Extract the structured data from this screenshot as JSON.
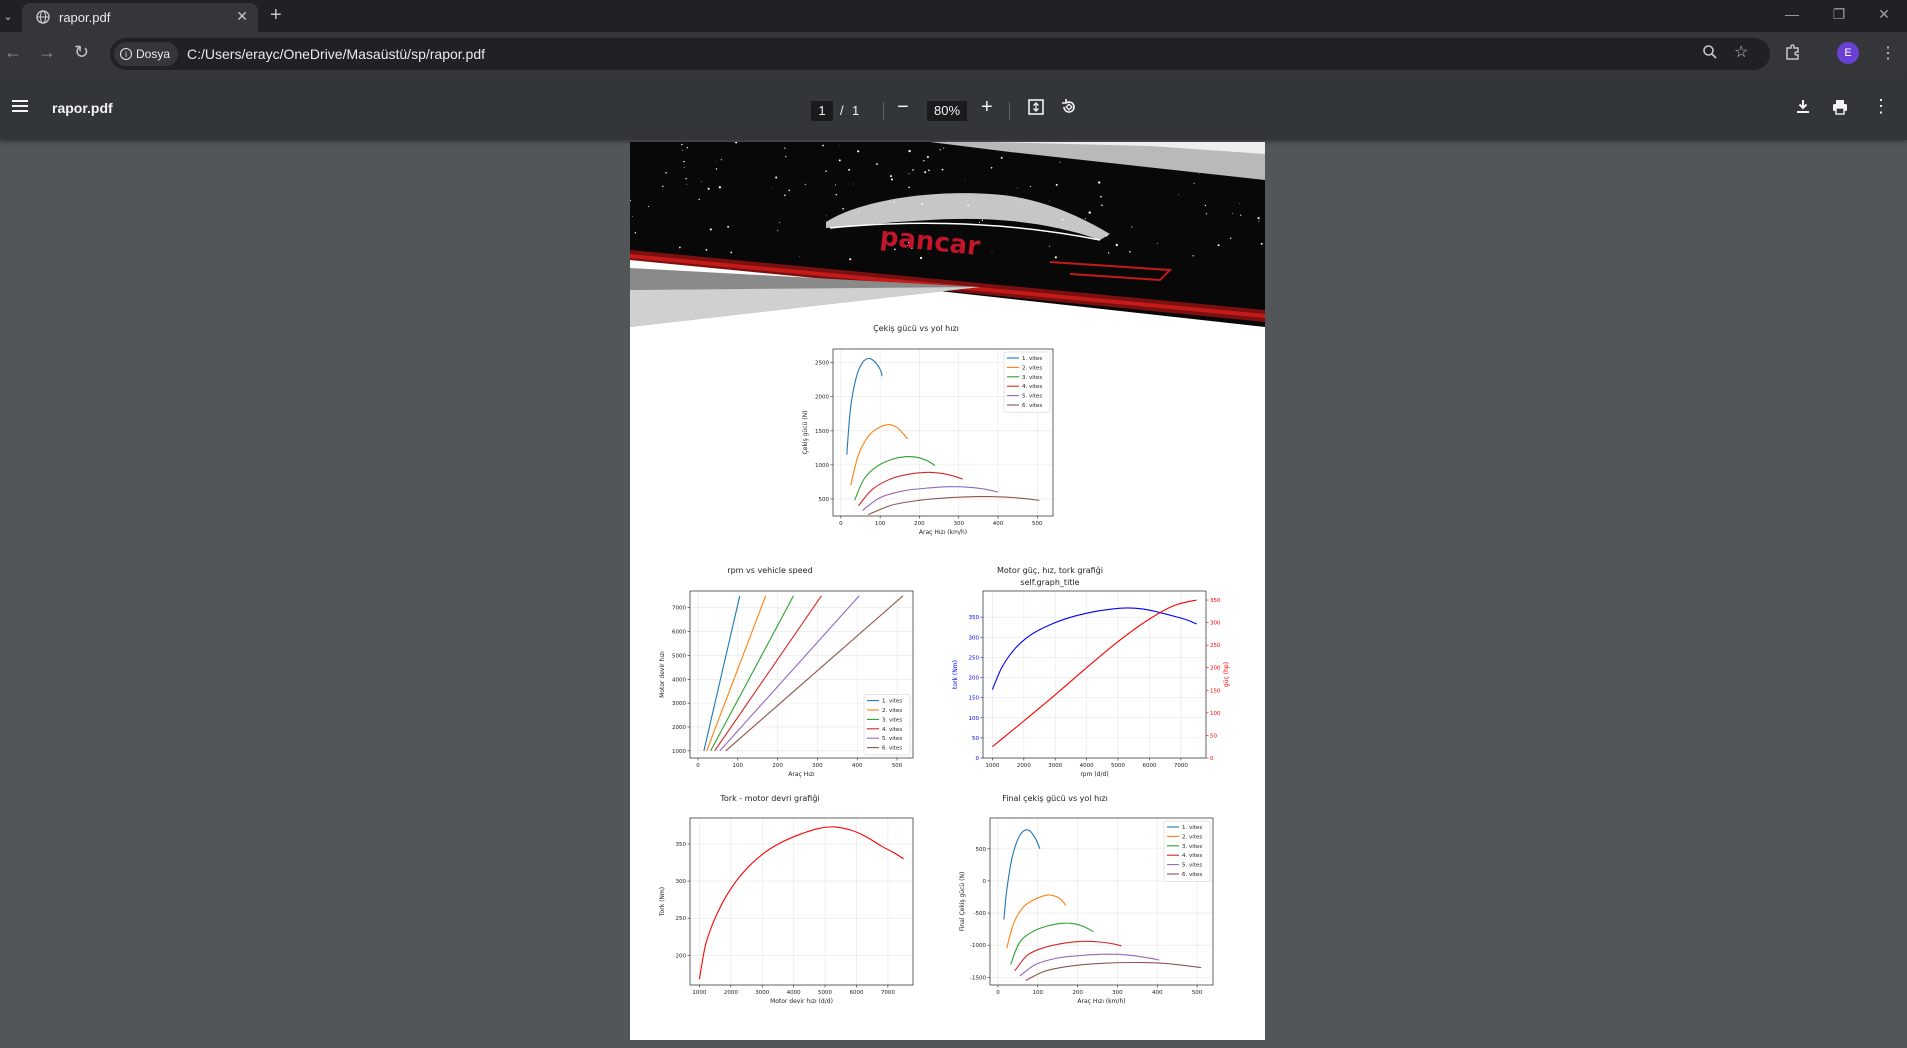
{
  "browser": {
    "tab_title": "rapor.pdf",
    "site_chip_label": "Dosya",
    "url": "C:/Users/erayc/OneDrive/Masaüstü/sp/rapor.pdf",
    "profile_initial": "E",
    "icons": [
      "globe-icon",
      "close-icon",
      "plus-icon",
      "back-icon",
      "forward-icon",
      "reload-icon",
      "info-icon",
      "zoom-icon",
      "star-icon",
      "extensions-icon",
      "kebab-icon"
    ]
  },
  "viewer": {
    "title": "rapor.pdf",
    "page_current": "1",
    "page_sep": "/",
    "page_total": "1",
    "zoom": "80%"
  },
  "banner": {
    "logo_text": "pancar"
  },
  "charts": {
    "cekis": {
      "title": "Çekiş gücü vs yol hızı",
      "xlabel": "Araç Hızı (km/h)",
      "ylabel": "Çekiş gücü (N)"
    },
    "rpm": {
      "title": "rpm vs vehicle speed",
      "xlabel": "Araç Hızı",
      "ylabel": "Motor devir hızı"
    },
    "motor": {
      "title": "Motor güç, hız, tork grafiği",
      "subtitle": "self.graph_title",
      "xlabel": "rpm (d/d)",
      "ylabel": "tork (Nm)",
      "y2label": "güç (hp)"
    },
    "tork": {
      "title": "Tork - motor devri grafiği",
      "xlabel": "Motor devir hızı (d/d)",
      "ylabel": "Tork (Nm)"
    },
    "final": {
      "title": "Final çekiş gücü vs yol hızı",
      "xlabel": "Araç Hızı (km/h)",
      "ylabel": "Final Çekiş gücü (N)"
    }
  },
  "chart_data": [
    {
      "type": "line",
      "id": "cekis",
      "title": "Çekiş gücü vs yol hızı",
      "xlabel": "Araç Hızı (km/h)",
      "ylabel": "Çekiş gücü (N)",
      "xlim": [
        -20,
        540
      ],
      "ylim": [
        250,
        2700
      ],
      "xticks": [
        0,
        100,
        200,
        300,
        400,
        500
      ],
      "yticks": [
        500,
        1000,
        1500,
        2000,
        2500
      ],
      "legend": "top-right",
      "series": [
        {
          "name": "1. vites",
          "color": "#1f77b4",
          "points": [
            [
              15,
              1150
            ],
            [
              25,
              1850
            ],
            [
              40,
              2300
            ],
            [
              55,
              2500
            ],
            [
              70,
              2560
            ],
            [
              85,
              2520
            ],
            [
              100,
              2400
            ],
            [
              105,
              2300
            ]
          ]
        },
        {
          "name": "2. vites",
          "color": "#ff7f0e",
          "points": [
            [
              25,
              700
            ],
            [
              45,
              1150
            ],
            [
              70,
              1420
            ],
            [
              95,
              1540
            ],
            [
              120,
              1590
            ],
            [
              140,
              1560
            ],
            [
              155,
              1480
            ],
            [
              170,
              1380
            ]
          ]
        },
        {
          "name": "3. vites",
          "color": "#2ca02c",
          "points": [
            [
              35,
              480
            ],
            [
              60,
              800
            ],
            [
              95,
              990
            ],
            [
              130,
              1080
            ],
            [
              165,
              1120
            ],
            [
              195,
              1110
            ],
            [
              220,
              1060
            ],
            [
              240,
              990
            ]
          ]
        },
        {
          "name": "4. vites",
          "color": "#d62728",
          "points": [
            [
              45,
              400
            ],
            [
              80,
              640
            ],
            [
              125,
              790
            ],
            [
              170,
              860
            ],
            [
              215,
              890
            ],
            [
              250,
              880
            ],
            [
              285,
              840
            ],
            [
              310,
              790
            ]
          ]
        },
        {
          "name": "5. vites",
          "color": "#9467bd",
          "points": [
            [
              55,
              330
            ],
            [
              100,
              520
            ],
            [
              160,
              620
            ],
            [
              220,
              660
            ],
            [
              280,
              680
            ],
            [
              330,
              670
            ],
            [
              370,
              640
            ],
            [
              400,
              600
            ]
          ]
        },
        {
          "name": "6. vites",
          "color": "#8c564b",
          "points": [
            [
              70,
              270
            ],
            [
              130,
              410
            ],
            [
              200,
              480
            ],
            [
              280,
              520
            ],
            [
              350,
              535
            ],
            [
              410,
              530
            ],
            [
              460,
              510
            ],
            [
              505,
              480
            ]
          ]
        }
      ]
    },
    {
      "type": "line",
      "id": "rpm",
      "title": "rpm vs vehicle speed",
      "xlabel": "Araç Hızı",
      "ylabel": "Motor devir hızı",
      "xlim": [
        -20,
        540
      ],
      "ylim": [
        700,
        7700
      ],
      "xticks": [
        0,
        100,
        200,
        300,
        400,
        500
      ],
      "yticks": [
        1000,
        2000,
        3000,
        4000,
        5000,
        6000,
        7000
      ],
      "legend": "bottom-right",
      "series": [
        {
          "name": "1. vites",
          "color": "#1f77b4",
          "points": [
            [
              15,
              1000
            ],
            [
              105,
              7500
            ]
          ]
        },
        {
          "name": "2. vites",
          "color": "#ff7f0e",
          "points": [
            [
              22,
              1000
            ],
            [
              170,
              7500
            ]
          ]
        },
        {
          "name": "3. vites",
          "color": "#2ca02c",
          "points": [
            [
              32,
              1000
            ],
            [
              240,
              7500
            ]
          ]
        },
        {
          "name": "4. vites",
          "color": "#d62728",
          "points": [
            [
              42,
              1000
            ],
            [
              310,
              7500
            ]
          ]
        },
        {
          "name": "5. vites",
          "color": "#9467bd",
          "points": [
            [
              55,
              1000
            ],
            [
              405,
              7500
            ]
          ]
        },
        {
          "name": "6. vites",
          "color": "#8c564b",
          "points": [
            [
              70,
              1000
            ],
            [
              515,
              7500
            ]
          ]
        }
      ]
    },
    {
      "type": "line",
      "id": "motor",
      "title": "Motor güç, hız, tork grafiği",
      "subtitle": "self.graph_title",
      "xlabel": "rpm (d/d)",
      "ylabel": "tork (Nm)",
      "y2label": "güç (hp)",
      "xlim": [
        700,
        7800
      ],
      "ylim": [
        0,
        415
      ],
      "y2lim": [
        0,
        370
      ],
      "xticks": [
        1000,
        2000,
        3000,
        4000,
        5000,
        6000,
        7000
      ],
      "yticks": [
        0,
        50,
        100,
        150,
        200,
        250,
        300,
        350
      ],
      "y2ticks": [
        0,
        50,
        100,
        150,
        200,
        250,
        300,
        350
      ],
      "series": [
        {
          "name": "tork",
          "color": "#0000ff",
          "axis": "left",
          "points": [
            [
              1000,
              170
            ],
            [
              1300,
              225
            ],
            [
              1700,
              270
            ],
            [
              2200,
              305
            ],
            [
              2800,
              330
            ],
            [
              3500,
              350
            ],
            [
              4200,
              363
            ],
            [
              4800,
              370
            ],
            [
              5300,
              373
            ],
            [
              5800,
              370
            ],
            [
              6300,
              362
            ],
            [
              6800,
              352
            ],
            [
              7200,
              343
            ],
            [
              7500,
              333
            ]
          ]
        },
        {
          "name": "güç",
          "color": "#ff0000",
          "axis": "right",
          "points": [
            [
              1000,
              25
            ],
            [
              2000,
              82
            ],
            [
              3000,
              140
            ],
            [
              4000,
              200
            ],
            [
              5000,
              258
            ],
            [
              6000,
              308
            ],
            [
              6800,
              338
            ],
            [
              7500,
              350
            ]
          ]
        }
      ]
    },
    {
      "type": "line",
      "id": "tork",
      "title": "Tork - motor devri grafiği",
      "xlabel": "Motor devir hızı (d/d)",
      "ylabel": "Tork (Nm)",
      "xlim": [
        700,
        7800
      ],
      "ylim": [
        160,
        385
      ],
      "xticks": [
        1000,
        2000,
        3000,
        4000,
        5000,
        6000,
        7000
      ],
      "yticks": [
        200,
        250,
        300,
        350
      ],
      "series": [
        {
          "name": "tork",
          "color": "#ff0000",
          "points": [
            [
              1000,
              168
            ],
            [
              1200,
              215
            ],
            [
              1500,
              250
            ],
            [
              1900,
              283
            ],
            [
              2400,
              312
            ],
            [
              3000,
              336
            ],
            [
              3600,
              352
            ],
            [
              4200,
              363
            ],
            [
              4800,
              371
            ],
            [
              5300,
              373
            ],
            [
              5800,
              369
            ],
            [
              6300,
              360
            ],
            [
              6800,
              347
            ],
            [
              7200,
              338
            ],
            [
              7500,
              330
            ]
          ]
        }
      ]
    },
    {
      "type": "line",
      "id": "final",
      "title": "Final çekiş gücü vs yol hızı",
      "xlabel": "Araç Hızı (km/h)",
      "ylabel": "Final Çekiş gücü (N)",
      "xlim": [
        -20,
        540
      ],
      "ylim": [
        -1620,
        980
      ],
      "xticks": [
        0,
        100,
        200,
        300,
        400,
        500
      ],
      "yticks": [
        -1500,
        -1000,
        -500,
        0,
        500
      ],
      "legend": "top-right",
      "series": [
        {
          "name": "1. vites",
          "color": "#1f77b4",
          "points": [
            [
              15,
              -600
            ],
            [
              22,
              -150
            ],
            [
              35,
              350
            ],
            [
              50,
              650
            ],
            [
              65,
              780
            ],
            [
              80,
              780
            ],
            [
              95,
              650
            ],
            [
              105,
              500
            ]
          ]
        },
        {
          "name": "2. vites",
          "color": "#ff7f0e",
          "points": [
            [
              22,
              -1050
            ],
            [
              40,
              -650
            ],
            [
              65,
              -400
            ],
            [
              95,
              -280
            ],
            [
              125,
              -220
            ],
            [
              145,
              -240
            ],
            [
              160,
              -300
            ],
            [
              170,
              -380
            ]
          ]
        },
        {
          "name": "3. vites",
          "color": "#2ca02c",
          "points": [
            [
              32,
              -1300
            ],
            [
              55,
              -950
            ],
            [
              90,
              -780
            ],
            [
              125,
              -700
            ],
            [
              160,
              -660
            ],
            [
              190,
              -665
            ],
            [
              215,
              -710
            ],
            [
              240,
              -790
            ]
          ]
        },
        {
          "name": "4. vites",
          "color": "#d62728",
          "points": [
            [
              42,
              -1400
            ],
            [
              75,
              -1150
            ],
            [
              120,
              -1030
            ],
            [
              170,
              -965
            ],
            [
              215,
              -940
            ],
            [
              255,
              -950
            ],
            [
              290,
              -980
            ],
            [
              310,
              -1010
            ]
          ]
        },
        {
          "name": "5. vites",
          "color": "#9467bd",
          "points": [
            [
              55,
              -1480
            ],
            [
              95,
              -1300
            ],
            [
              150,
              -1200
            ],
            [
              210,
              -1160
            ],
            [
              270,
              -1140
            ],
            [
              320,
              -1150
            ],
            [
              370,
              -1190
            ],
            [
              405,
              -1230
            ]
          ]
        },
        {
          "name": "6. vites",
          "color": "#8c564b",
          "points": [
            [
              70,
              -1550
            ],
            [
              120,
              -1400
            ],
            [
              190,
              -1320
            ],
            [
              270,
              -1280
            ],
            [
              350,
              -1270
            ],
            [
              410,
              -1280
            ],
            [
              460,
              -1310
            ],
            [
              510,
              -1350
            ]
          ]
        }
      ]
    }
  ]
}
